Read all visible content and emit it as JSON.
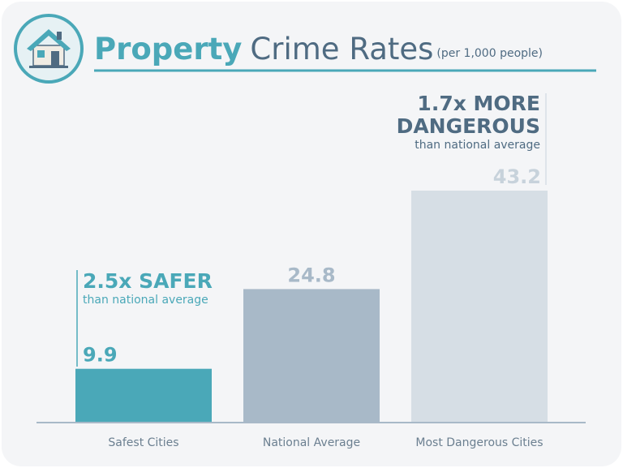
{
  "chart_data": {
    "type": "bar",
    "title": {
      "highlight": "Property",
      "main": "Crime Rates"
    },
    "subtitle": "(per 1,000 people)",
    "categories": [
      "Safest Cities",
      "National Average",
      "Most Dangerous Cities"
    ],
    "values": [
      9.9,
      24.8,
      43.2
    ],
    "colors": [
      "#4aa8b8",
      "#a8b9c8",
      "#d6dee5"
    ],
    "value_label_colors": [
      "#4aa8b8",
      "#a8b9c8",
      "#c7d2db"
    ],
    "annotations": [
      {
        "lines": [
          "2.5x SAFER"
        ],
        "note": "than national average",
        "color": "#4aa8b8"
      },
      {
        "lines": [
          "1.7x MORE",
          "DANGEROUS"
        ],
        "note": "than national average",
        "color": "#4f6b82"
      }
    ]
  }
}
